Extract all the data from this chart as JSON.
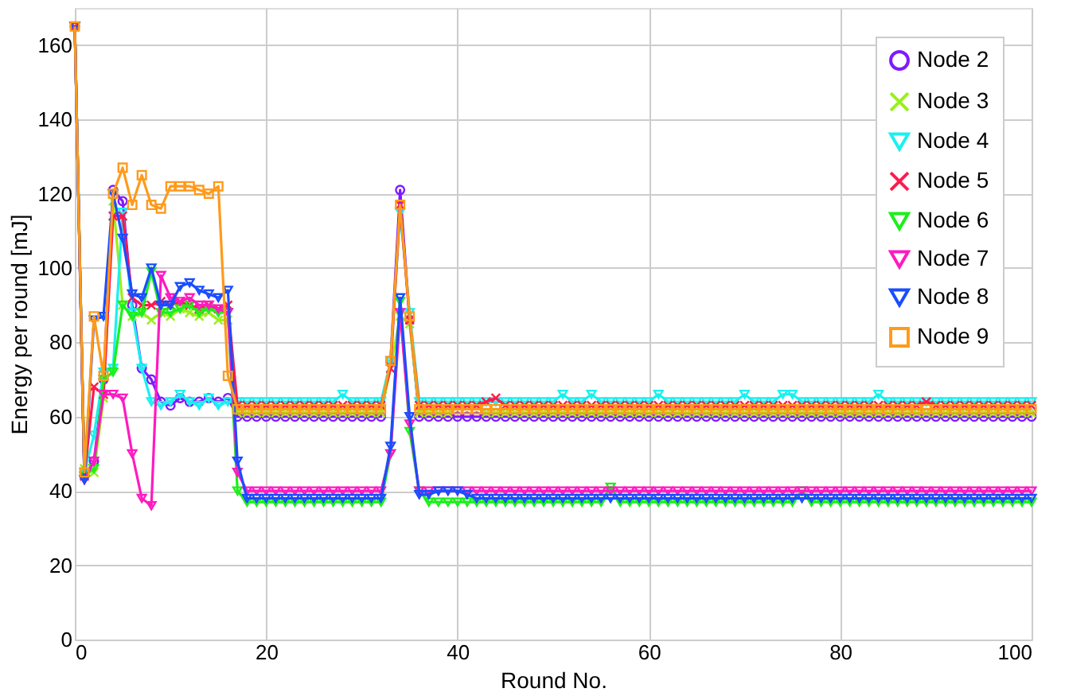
{
  "chart_data": {
    "type": "line",
    "xlabel": "Round No.",
    "ylabel": "Energy per round [mJ]",
    "xlim": [
      0,
      100
    ],
    "ylim": [
      0,
      170
    ],
    "xticks": [
      0,
      20,
      40,
      60,
      80,
      100
    ],
    "yticks": [
      0,
      20,
      40,
      60,
      80,
      100,
      120,
      140,
      160
    ],
    "grid": true,
    "legend": "top right",
    "line_style": "solid",
    "x": [
      0,
      1,
      2,
      3,
      4,
      5,
      6,
      7,
      8,
      9,
      10,
      11,
      12,
      13,
      14,
      15,
      16,
      17,
      18,
      19,
      20,
      21,
      22,
      23,
      24,
      25,
      26,
      27,
      28,
      29,
      30,
      31,
      32,
      33,
      34,
      35,
      36,
      37,
      38,
      39,
      40,
      41,
      42,
      43,
      44,
      45,
      46,
      47,
      48,
      49,
      50,
      51,
      52,
      53,
      54,
      55,
      56,
      57,
      58,
      59,
      60,
      61,
      62,
      63,
      64,
      65,
      66,
      67,
      68,
      69,
      70,
      71,
      72,
      73,
      74,
      75,
      76,
      77,
      78,
      79,
      80,
      81,
      82,
      83,
      84,
      85,
      86,
      87,
      88,
      89,
      90,
      91,
      92,
      93,
      94,
      95,
      96,
      97,
      98,
      99,
      100
    ],
    "series": [
      {
        "name": "Node 2",
        "color": "#7f1aff",
        "marker": "circle",
        "values": [
          165,
          44,
          48,
          70,
          121,
          118,
          90,
          73,
          70,
          64,
          63,
          65,
          64,
          64,
          65,
          64,
          65,
          60,
          60,
          60,
          60,
          60,
          60,
          60,
          60,
          60,
          60,
          60,
          60,
          60,
          60,
          60,
          60,
          75,
          121,
          86,
          60,
          60,
          60,
          60,
          60,
          60,
          60,
          60,
          60,
          60,
          60,
          60,
          60,
          60,
          60,
          60,
          60,
          60,
          60,
          60,
          60,
          60,
          60,
          60,
          60,
          60,
          60,
          60,
          60,
          60,
          60,
          60,
          60,
          60,
          60,
          60,
          60,
          60,
          60,
          60,
          60,
          60,
          60,
          60,
          60,
          60,
          60,
          60,
          60,
          60,
          60,
          60,
          60,
          60,
          60,
          60,
          60,
          60,
          60,
          60,
          60,
          60,
          60,
          60,
          60
        ]
      },
      {
        "name": "Node 3",
        "color": "#99f01a",
        "marker": "cross",
        "values": [
          165,
          46,
          45,
          65,
          118,
          90,
          87,
          88,
          86,
          88,
          87,
          89,
          88,
          87,
          88,
          86,
          86,
          61,
          61,
          61,
          61,
          61,
          61,
          61,
          61,
          61,
          61,
          61,
          61,
          61,
          61,
          61,
          61,
          73,
          87,
          85,
          61,
          61,
          61,
          61,
          63,
          63,
          63,
          61,
          61,
          61,
          61,
          61,
          61,
          61,
          61,
          61,
          61,
          61,
          61,
          61,
          61,
          61,
          61,
          61,
          61,
          61,
          61,
          61,
          61,
          61,
          61,
          61,
          61,
          61,
          61,
          61,
          61,
          61,
          61,
          61,
          61,
          61,
          61,
          61,
          61,
          61,
          61,
          61,
          61,
          61,
          61,
          61,
          61,
          61,
          61,
          61,
          61,
          61,
          61,
          61,
          61,
          61,
          61,
          61,
          61
        ]
      },
      {
        "name": "Node 4",
        "color": "#1af0f0",
        "marker": "triangle",
        "values": [
          165,
          45,
          55,
          72,
          73,
          115,
          88,
          73,
          64,
          63,
          64,
          66,
          64,
          63,
          65,
          63,
          64,
          64,
          64,
          64,
          64,
          64,
          64,
          64,
          64,
          64,
          64,
          64,
          66,
          64,
          64,
          64,
          64,
          75,
          115,
          88,
          64,
          64,
          64,
          64,
          64,
          64,
          64,
          64,
          64,
          64,
          64,
          64,
          64,
          64,
          64,
          66,
          64,
          64,
          66,
          64,
          64,
          64,
          64,
          64,
          64,
          66,
          64,
          64,
          64,
          64,
          64,
          64,
          64,
          64,
          66,
          64,
          64,
          64,
          66,
          66,
          64,
          64,
          64,
          64,
          64,
          64,
          64,
          64,
          66,
          64,
          64,
          64,
          64,
          64,
          64,
          64,
          64,
          64,
          64,
          64,
          64,
          64,
          64,
          64,
          64
        ]
      },
      {
        "name": "Node 5",
        "color": "#ff1a4d",
        "marker": "cross",
        "values": [
          165,
          44,
          68,
          66,
          114,
          114,
          92,
          90,
          90,
          91,
          90,
          91,
          90,
          89,
          90,
          89,
          90,
          63,
          63,
          63,
          63,
          63,
          63,
          63,
          63,
          63,
          63,
          63,
          63,
          63,
          63,
          63,
          63,
          73,
          117,
          86,
          63,
          63,
          63,
          63,
          63,
          63,
          63,
          64,
          65,
          63,
          63,
          63,
          63,
          63,
          63,
          63,
          63,
          63,
          63,
          63,
          63,
          63,
          63,
          63,
          63,
          63,
          63,
          63,
          63,
          63,
          63,
          63,
          63,
          63,
          63,
          63,
          63,
          63,
          63,
          63,
          63,
          63,
          63,
          63,
          63,
          63,
          63,
          63,
          63,
          63,
          63,
          63,
          63,
          64,
          63,
          63,
          63,
          63,
          63,
          63,
          63,
          63,
          63,
          63,
          63
        ]
      },
      {
        "name": "Node 6",
        "color": "#1af01a",
        "marker": "triangle",
        "values": [
          165,
          44,
          46,
          70,
          72,
          90,
          87,
          88,
          99,
          88,
          88,
          89,
          90,
          88,
          89,
          88,
          88,
          40,
          37,
          37,
          37,
          37,
          37,
          37,
          37,
          37,
          37,
          37,
          37,
          37,
          37,
          37,
          37,
          50,
          91,
          56,
          40,
          37,
          37,
          37,
          37,
          37,
          37,
          37,
          37,
          37,
          37,
          37,
          37,
          37,
          37,
          37,
          37,
          37,
          37,
          37,
          41,
          37,
          37,
          37,
          37,
          37,
          37,
          37,
          37,
          37,
          37,
          37,
          37,
          37,
          37,
          37,
          37,
          37,
          37,
          37,
          40,
          37,
          37,
          37,
          37,
          37,
          37,
          37,
          37,
          37,
          37,
          37,
          37,
          37,
          37,
          37,
          37,
          37,
          37,
          37,
          37,
          37,
          37,
          37,
          37
        ]
      },
      {
        "name": "Node 7",
        "color": "#ff1ac0",
        "marker": "triangle",
        "values": [
          165,
          43,
          48,
          66,
          66,
          65,
          50,
          38,
          36,
          98,
          92,
          91,
          92,
          90,
          90,
          89,
          88,
          45,
          40,
          40,
          40,
          40,
          40,
          40,
          40,
          40,
          40,
          40,
          40,
          40,
          40,
          40,
          40,
          50,
          88,
          58,
          40,
          40,
          40,
          40,
          40,
          40,
          40,
          40,
          40,
          40,
          40,
          40,
          40,
          40,
          40,
          40,
          40,
          40,
          40,
          40,
          40,
          40,
          40,
          40,
          40,
          40,
          40,
          40,
          40,
          40,
          40,
          40,
          40,
          40,
          40,
          40,
          40,
          40,
          40,
          40,
          40,
          40,
          40,
          40,
          40,
          40,
          40,
          40,
          40,
          40,
          40,
          40,
          40,
          40,
          40,
          40,
          40,
          40,
          40,
          40,
          40,
          40,
          40,
          40,
          40
        ]
      },
      {
        "name": "Node 8",
        "color": "#1a4dff",
        "marker": "triangle",
        "values": [
          165,
          43,
          86,
          87,
          120,
          108,
          93,
          92,
          100,
          90,
          90,
          95,
          96,
          94,
          93,
          92,
          94,
          48,
          38,
          38,
          38,
          38,
          38,
          38,
          38,
          38,
          38,
          38,
          38,
          38,
          38,
          38,
          38,
          52,
          92,
          60,
          39,
          39,
          40,
          40,
          40,
          39,
          38,
          38,
          38,
          38,
          38,
          38,
          38,
          38,
          38,
          38,
          38,
          38,
          38,
          38,
          38,
          38,
          38,
          38,
          38,
          38,
          38,
          38,
          38,
          38,
          38,
          38,
          38,
          38,
          38,
          38,
          38,
          38,
          38,
          38,
          38,
          38,
          38,
          38,
          38,
          38,
          38,
          38,
          38,
          38,
          38,
          38,
          38,
          38,
          38,
          38,
          38,
          38,
          38,
          38,
          38,
          38,
          38,
          38,
          38
        ]
      },
      {
        "name": "Node 9",
        "color": "#ff9a1a",
        "marker": "square",
        "values": [
          165,
          45,
          87,
          71,
          120,
          127,
          117,
          125,
          117,
          116,
          122,
          122,
          122,
          121,
          120,
          122,
          71,
          62,
          62,
          62,
          62,
          62,
          62,
          62,
          62,
          62,
          62,
          62,
          62,
          62,
          62,
          62,
          62,
          75,
          117,
          87,
          62,
          62,
          62,
          62,
          62,
          62,
          62,
          62,
          62,
          62,
          62,
          62,
          62,
          62,
          62,
          62,
          62,
          62,
          62,
          62,
          62,
          62,
          62,
          62,
          62,
          62,
          62,
          62,
          62,
          62,
          62,
          62,
          62,
          62,
          62,
          62,
          62,
          62,
          62,
          62,
          62,
          62,
          62,
          62,
          62,
          62,
          62,
          62,
          62,
          62,
          62,
          62,
          62,
          62,
          62,
          62,
          62,
          62,
          62,
          62,
          62,
          62,
          62,
          62,
          62
        ]
      }
    ]
  }
}
